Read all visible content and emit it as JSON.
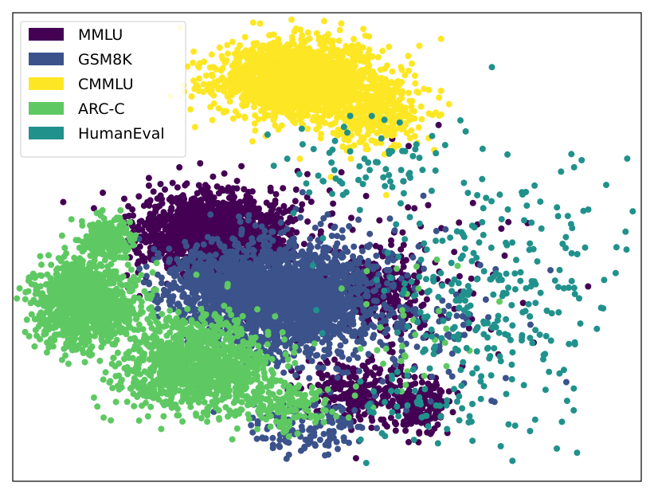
{
  "chart_data": {
    "type": "scatter",
    "title": "",
    "xlabel": "",
    "ylabel": "",
    "axes_ticks": "none",
    "grid": false,
    "legend_placement": "top-left",
    "series": [
      {
        "name": "MMLU",
        "color": "#440154",
        "clusters": [
          {
            "cx": 0.32,
            "cy": 0.53,
            "sx": 0.06,
            "sy": 0.045,
            "n": 1500
          },
          {
            "cx": 0.58,
            "cy": 0.41,
            "sx": 0.035,
            "sy": 0.035,
            "n": 300
          },
          {
            "cx": 0.54,
            "cy": 0.19,
            "sx": 0.04,
            "sy": 0.03,
            "n": 260
          },
          {
            "cx": 0.65,
            "cy": 0.16,
            "sx": 0.025,
            "sy": 0.03,
            "n": 170
          },
          {
            "cx": 0.61,
            "cy": 0.42,
            "sx": 0.1,
            "sy": 0.12,
            "n": 140
          }
        ]
      },
      {
        "name": "GSM8K",
        "color": "#3b528b",
        "clusters": [
          {
            "cx": 0.44,
            "cy": 0.39,
            "sx": 0.07,
            "sy": 0.06,
            "n": 2000
          },
          {
            "cx": 0.32,
            "cy": 0.42,
            "sx": 0.05,
            "sy": 0.04,
            "n": 500
          },
          {
            "cx": 0.47,
            "cy": 0.12,
            "sx": 0.05,
            "sy": 0.03,
            "n": 140
          },
          {
            "cx": 0.65,
            "cy": 0.33,
            "sx": 0.08,
            "sy": 0.1,
            "n": 100
          }
        ]
      },
      {
        "name": "CMMLU",
        "color": "#fde725",
        "clusters": [
          {
            "cx": 0.45,
            "cy": 0.86,
            "sx": 0.06,
            "sy": 0.04,
            "n": 1800
          },
          {
            "cx": 0.57,
            "cy": 0.79,
            "sx": 0.04,
            "sy": 0.04,
            "n": 400
          }
        ]
      },
      {
        "name": "ARC-C",
        "color": "#5ec962",
        "clusters": [
          {
            "cx": 0.115,
            "cy": 0.38,
            "sx": 0.04,
            "sy": 0.045,
            "n": 1100
          },
          {
            "cx": 0.15,
            "cy": 0.52,
            "sx": 0.02,
            "sy": 0.02,
            "n": 250
          },
          {
            "cx": 0.29,
            "cy": 0.25,
            "sx": 0.06,
            "sy": 0.05,
            "n": 1100
          },
          {
            "cx": 0.43,
            "cy": 0.16,
            "sx": 0.04,
            "sy": 0.025,
            "n": 150
          },
          {
            "cx": 0.62,
            "cy": 0.33,
            "sx": 0.06,
            "sy": 0.08,
            "n": 35
          }
        ]
      },
      {
        "name": "HumanEval",
        "color": "#21918c",
        "clusters": [
          {
            "cx": 0.76,
            "cy": 0.42,
            "sx": 0.1,
            "sy": 0.15,
            "n": 300
          },
          {
            "cx": 0.64,
            "cy": 0.15,
            "sx": 0.05,
            "sy": 0.05,
            "n": 40
          },
          {
            "cx": 0.56,
            "cy": 0.68,
            "sx": 0.08,
            "sy": 0.05,
            "n": 60
          }
        ]
      }
    ],
    "x_range": [
      0,
      1
    ],
    "y_range": [
      0,
      1
    ]
  }
}
